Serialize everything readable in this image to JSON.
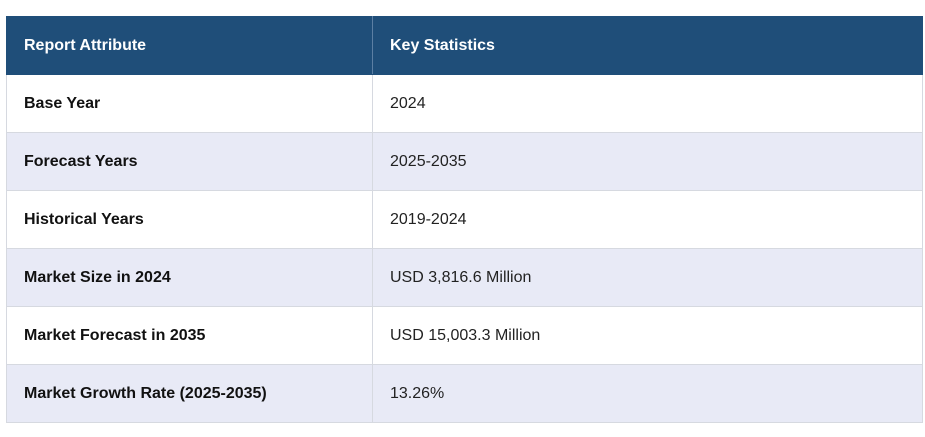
{
  "table": {
    "headers": [
      "Report Attribute",
      "Key Statistics"
    ],
    "rows": [
      [
        "Base Year",
        "2024"
      ],
      [
        "Forecast Years",
        "2025-2035"
      ],
      [
        "Historical Years",
        "2019-2024"
      ],
      [
        "Market Size in 2024",
        "USD 3,816.6 Million"
      ],
      [
        "Market Forecast in 2035",
        "USD 15,003.3 Million"
      ],
      [
        "Market Growth Rate (2025-2035)",
        "13.26%"
      ]
    ]
  },
  "colors": {
    "header_bg": "#1f4e79",
    "header_text": "#ffffff",
    "row_alt_bg": "#e8eaf6",
    "border": "#d6d9e0"
  }
}
